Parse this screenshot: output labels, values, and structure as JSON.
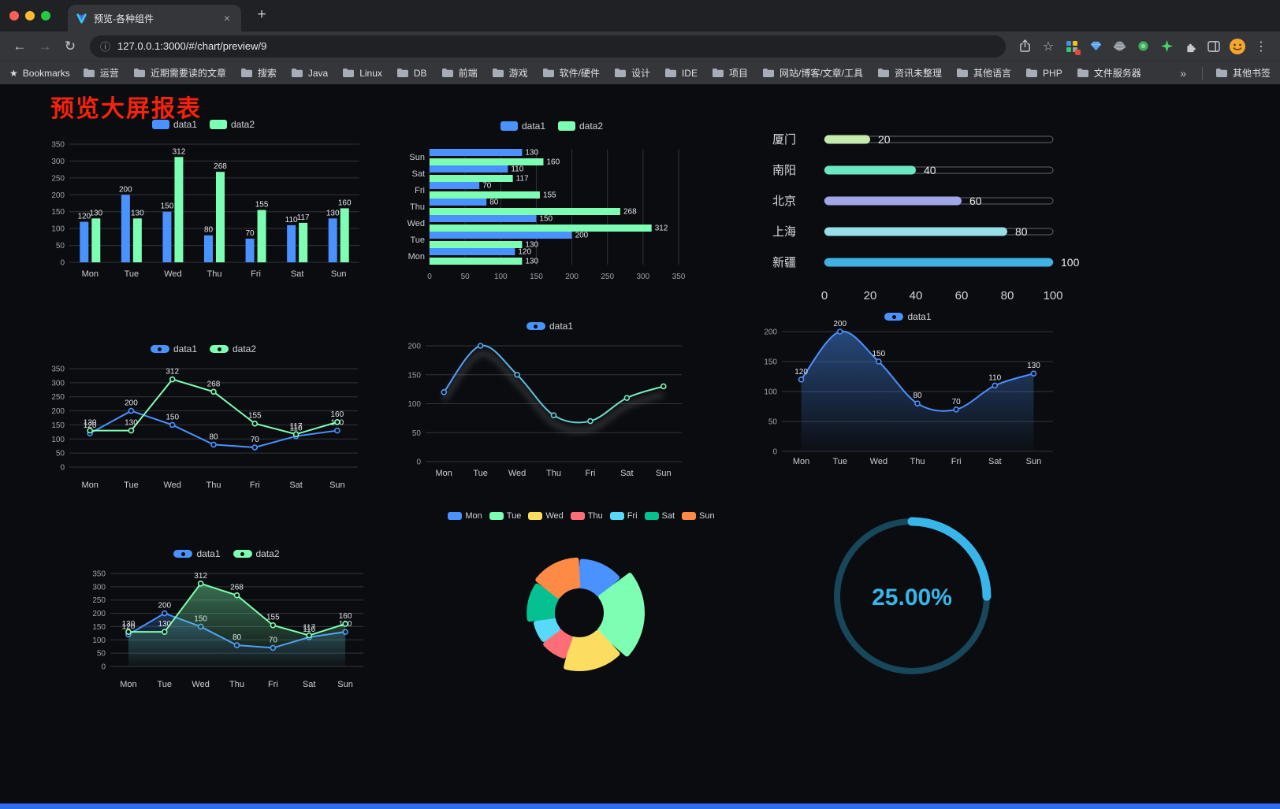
{
  "browser": {
    "tab": {
      "title": "预览-各种组件",
      "close_glyph": "×"
    },
    "new_tab_glyph": "+",
    "nav": {
      "back": "←",
      "forward": "→",
      "reload": "↻"
    },
    "address": {
      "info_glyph": "ⓘ",
      "url": "127.0.0.1:3000/#/chart/preview/9"
    },
    "action_icons": {
      "star_glyph": "☆",
      "menu_glyph": "⋮"
    },
    "bookmarks_bar": {
      "bookmarks_label": "Bookmarks",
      "folders": [
        "运营",
        "近期需要读的文章",
        "搜索",
        "Java",
        "Linux",
        "DB",
        "前端",
        "游戏",
        "软件/硬件",
        "设计",
        "IDE",
        "项目",
        "网站/博客/文章/工具",
        "资讯未整理",
        "其他语言",
        "PHP",
        "文件服务器"
      ],
      "overflow_glyph": "»",
      "other_bookmarks": "其他书签"
    }
  },
  "page": {
    "title": "预览大屏报表",
    "title_color": "#f5220c",
    "background": "#0b0c0f",
    "footer_bar_color": "#2e6cf2"
  },
  "chart_data": [
    {
      "id": "grouped-bar",
      "type": "bar",
      "categories": [
        "Mon",
        "Tue",
        "Wed",
        "Thu",
        "Fri",
        "Sat",
        "Sun"
      ],
      "series": [
        {
          "name": "data1",
          "color": "#4992ff",
          "values": [
            120,
            200,
            150,
            80,
            70,
            110,
            130
          ]
        },
        {
          "name": "data2",
          "color": "#7cffb2",
          "values": [
            130,
            130,
            312,
            268,
            155,
            117,
            160
          ]
        }
      ],
      "legend": [
        "data1",
        "data2"
      ],
      "legend_position": "top",
      "ylim": [
        0,
        350
      ],
      "ytick": 50,
      "value_labels": true,
      "grid": true
    },
    {
      "id": "horizontal-bar",
      "type": "hbar",
      "categories": [
        "Mon",
        "Tue",
        "Wed",
        "Thu",
        "Fri",
        "Sat",
        "Sun"
      ],
      "series": [
        {
          "name": "data1",
          "color": "#4992ff",
          "values": [
            120,
            200,
            150,
            80,
            70,
            110,
            130
          ]
        },
        {
          "name": "data2",
          "color": "#7cffb2",
          "values": [
            130,
            130,
            312,
            268,
            155,
            117,
            160
          ]
        }
      ],
      "legend": [
        "data1",
        "data2"
      ],
      "legend_position": "top",
      "xlim": [
        0,
        350
      ],
      "xtick": 50,
      "value_labels": true,
      "axis_note": "Mon at bottom, Sun at top"
    },
    {
      "id": "progress-bars",
      "type": "progress",
      "items": [
        {
          "label": "厦门",
          "value": 20,
          "color": "#c4ebad"
        },
        {
          "label": "南阳",
          "value": 40,
          "color": "#6be6c1"
        },
        {
          "label": "北京",
          "value": 60,
          "color": "#a0a7e6"
        },
        {
          "label": "上海",
          "value": 80,
          "color": "#96dee8"
        },
        {
          "label": "新疆",
          "value": 100,
          "color": "#3fb1e3"
        }
      ],
      "xlim": [
        0,
        100
      ],
      "xticks": [
        0,
        20,
        40,
        60,
        80,
        100
      ]
    },
    {
      "id": "multi-line",
      "type": "line",
      "categories": [
        "Mon",
        "Tue",
        "Wed",
        "Thu",
        "Fri",
        "Sat",
        "Sun"
      ],
      "series": [
        {
          "name": "data1",
          "color": "#4992ff",
          "values": [
            120,
            200,
            150,
            80,
            70,
            110,
            130
          ],
          "smooth": false
        },
        {
          "name": "data2",
          "color": "#7cffb2",
          "values": [
            130,
            130,
            312,
            268,
            155,
            117,
            160
          ],
          "smooth": false
        }
      ],
      "legend": [
        "data1",
        "data2"
      ],
      "legend_position": "top",
      "ylim": [
        0,
        350
      ],
      "ytick": 50,
      "value_labels": true
    },
    {
      "id": "gradient-line",
      "type": "line",
      "categories": [
        "Mon",
        "Tue",
        "Wed",
        "Thu",
        "Fri",
        "Sat",
        "Sun"
      ],
      "series": [
        {
          "name": "data1",
          "gradient": [
            "#4992ff",
            "#7cffb2"
          ],
          "values": [
            120,
            200,
            150,
            80,
            70,
            110,
            130
          ],
          "smooth": true
        }
      ],
      "legend": [
        "data1"
      ],
      "legend_position": "top",
      "ylim": [
        0,
        200
      ],
      "ytick": 50,
      "value_labels": false,
      "shadow": true
    },
    {
      "id": "area-line",
      "type": "line",
      "categories": [
        "Mon",
        "Tue",
        "Wed",
        "Thu",
        "Fri",
        "Sat",
        "Sun"
      ],
      "series": [
        {
          "name": "data1",
          "color": "#4992ff",
          "values": [
            120,
            200,
            150,
            80,
            70,
            110,
            130
          ],
          "smooth": true,
          "area": true
        }
      ],
      "legend": [
        "data1"
      ],
      "legend_position": "top",
      "ylim": [
        0,
        200
      ],
      "ytick": 50,
      "value_labels": true
    },
    {
      "id": "area-multi-line",
      "type": "line",
      "categories": [
        "Mon",
        "Tue",
        "Wed",
        "Thu",
        "Fri",
        "Sat",
        "Sun"
      ],
      "series": [
        {
          "name": "data1",
          "color": "#4992ff",
          "values": [
            120,
            200,
            150,
            80,
            70,
            110,
            130
          ],
          "smooth": false,
          "area": true
        },
        {
          "name": "data2",
          "color": "#7cffb2",
          "values": [
            130,
            130,
            312,
            268,
            155,
            117,
            160
          ],
          "smooth": false,
          "area": true
        }
      ],
      "legend": [
        "data1",
        "data2"
      ],
      "legend_position": "top",
      "ylim": [
        0,
        350
      ],
      "ytick": 50,
      "value_labels": true
    },
    {
      "id": "rose-pie",
      "type": "pie",
      "legend": [
        "Mon",
        "Tue",
        "Wed",
        "Thu",
        "Fri",
        "Sat",
        "Sun"
      ],
      "legend_position": "top",
      "slices": [
        {
          "name": "Mon",
          "value": 120,
          "color": "#4992ff"
        },
        {
          "name": "Tue",
          "value": 200,
          "color": "#7cffb2"
        },
        {
          "name": "Wed",
          "value": 150,
          "color": "#fddd60"
        },
        {
          "name": "Thu",
          "value": 80,
          "color": "#ff6e76"
        },
        {
          "name": "Fri",
          "value": 70,
          "color": "#58d9f9"
        },
        {
          "name": "Sat",
          "value": 110,
          "color": "#05c091"
        },
        {
          "name": "Sun",
          "value": 130,
          "color": "#ff8a45"
        }
      ],
      "style": "donut, rose radius, rounded slice corners"
    },
    {
      "id": "ring-progress",
      "type": "gauge",
      "value": 25,
      "display": "25.00%",
      "color": "#38b6ea",
      "track_color": "#17475a"
    }
  ]
}
